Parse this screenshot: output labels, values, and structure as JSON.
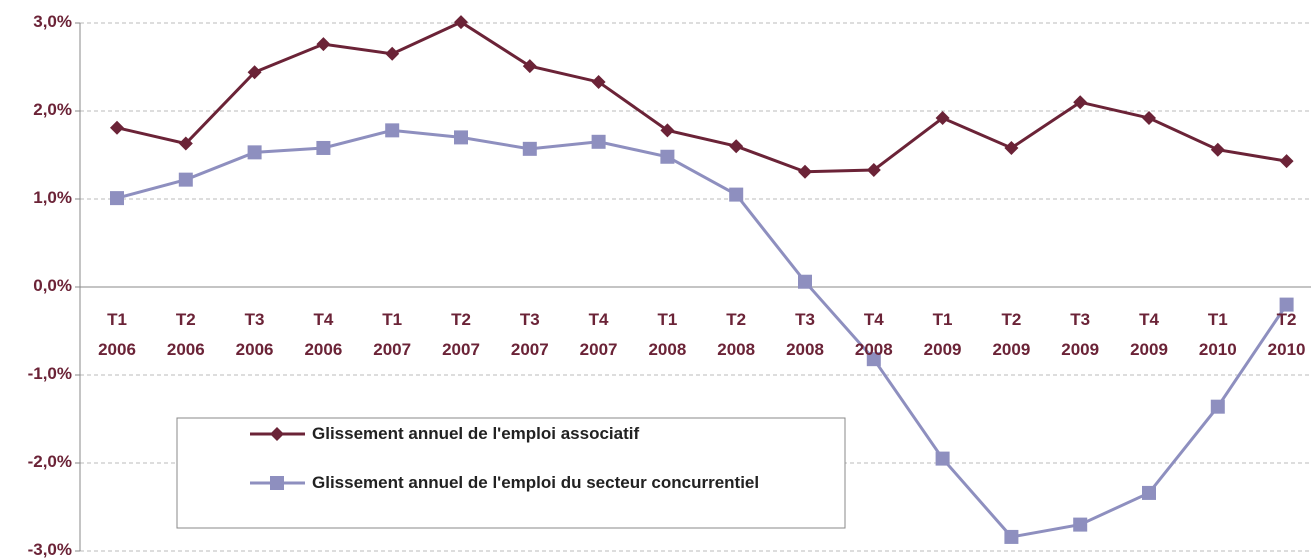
{
  "chart_data": {
    "type": "line",
    "categories": [
      "T1 2006",
      "T2 2006",
      "T3 2006",
      "T4 2006",
      "T1 2007",
      "T2 2007",
      "T3 2007",
      "T4 2007",
      "T1 2008",
      "T2 2008",
      "T3 2008",
      "T4 2008",
      "T1 2009",
      "T2 2009",
      "T3 2009",
      "T4 2009",
      "T1 2010",
      "T2 2010"
    ],
    "series": [
      {
        "name": "Glissement annuel de l'emploi associatif",
        "color": "#6b2337",
        "marker": "diamond",
        "values": [
          1.81,
          1.63,
          2.44,
          2.76,
          2.65,
          3.01,
          2.51,
          2.33,
          1.78,
          1.6,
          1.31,
          1.33,
          1.92,
          1.58,
          2.1,
          1.92,
          1.56,
          1.43
        ]
      },
      {
        "name": "Glissement annuel de l'emploi du secteur concurrentiel",
        "color": "#8e8fbf",
        "marker": "square",
        "values": [
          1.01,
          1.22,
          1.53,
          1.58,
          1.78,
          1.7,
          1.57,
          1.65,
          1.48,
          1.05,
          0.06,
          -0.82,
          -1.95,
          -2.84,
          -2.7,
          -2.34,
          -1.36,
          -0.2
        ]
      }
    ],
    "ylim": [
      -3,
      3
    ],
    "yticks": [
      {
        "value": 3,
        "label": "3,0%"
      },
      {
        "value": 2,
        "label": "2,0%"
      },
      {
        "value": 1,
        "label": "1,0%"
      },
      {
        "value": 0,
        "label": "0,0%"
      },
      {
        "value": -1,
        "label": "-1,0%"
      },
      {
        "value": -2,
        "label": "-2,0%"
      },
      {
        "value": -3,
        "label": "-3,0%"
      }
    ],
    "grid": true
  }
}
